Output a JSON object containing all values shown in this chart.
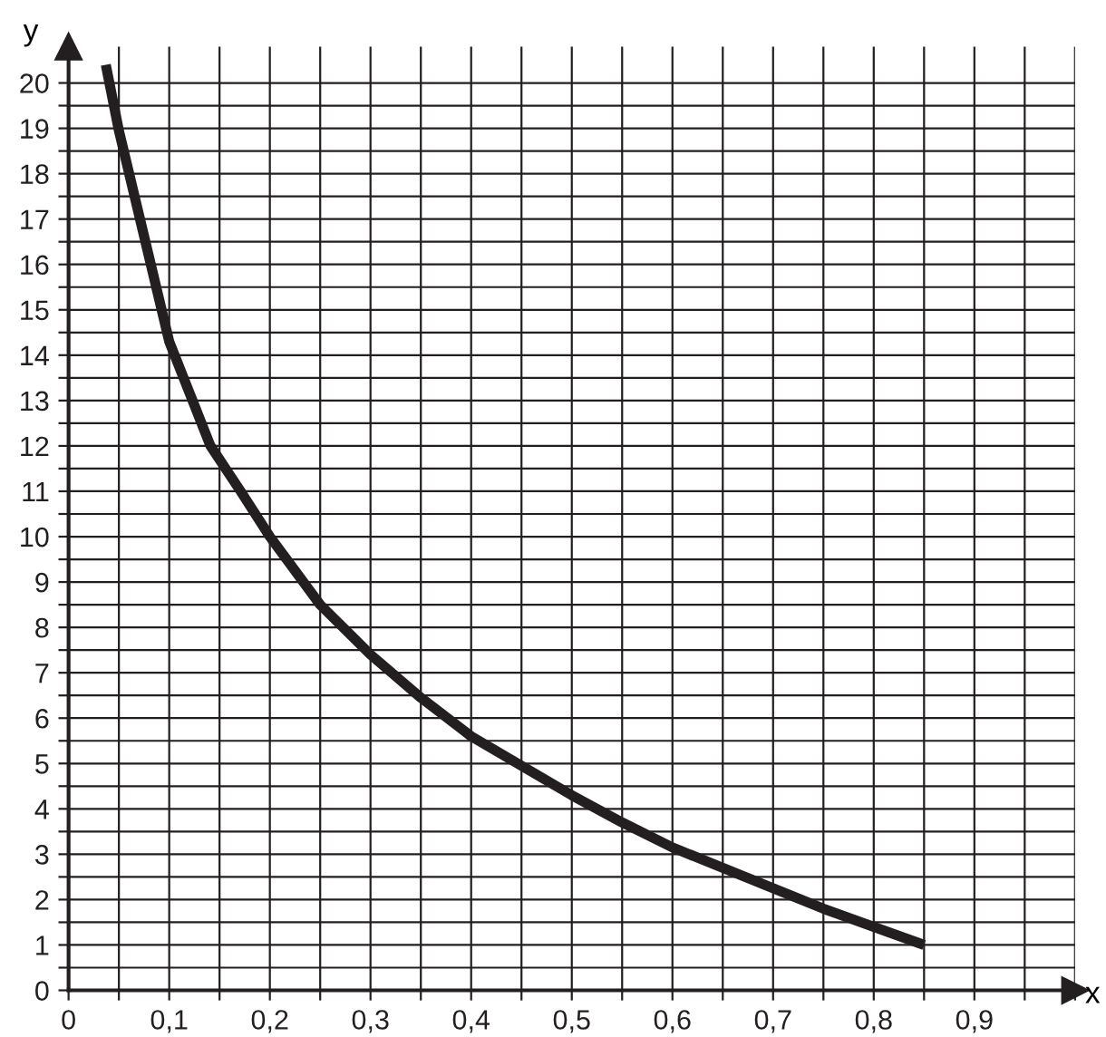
{
  "chart_data": {
    "type": "line",
    "xlabel": "x",
    "ylabel": "y",
    "x": [
      0.037,
      0.05,
      0.1,
      0.141,
      0.15,
      0.171,
      0.2,
      0.25,
      0.3,
      0.35,
      0.4,
      0.45,
      0.5,
      0.55,
      0.6,
      0.65,
      0.7,
      0.75,
      0.8,
      0.85
    ],
    "series": [
      {
        "color": "#231f20",
        "values": [
          20.4,
          18.95,
          14.3,
          12.0,
          11.7,
          11.0,
          10.0,
          8.5,
          7.4,
          6.45,
          5.6,
          4.95,
          4.3,
          3.7,
          3.15,
          2.7,
          2.25,
          1.8,
          1.4,
          1.0
        ]
      }
    ],
    "xlim": [
      0,
      1.0
    ],
    "ylim": [
      0,
      20.8
    ],
    "xticks": [
      0,
      {
        "value": 0.05,
        "label": null
      },
      {
        "value": 0.1,
        "label": "0,1"
      },
      {
        "value": 0.15,
        "label": null
      },
      {
        "value": 0.2,
        "label": "0,2"
      },
      {
        "value": 0.25,
        "label": null
      },
      {
        "value": 0.3,
        "label": "0,3"
      },
      {
        "value": 0.35,
        "label": null
      },
      {
        "value": 0.4,
        "label": "0,4"
      },
      {
        "value": 0.45,
        "label": null
      },
      {
        "value": 0.5,
        "label": "0,5"
      },
      {
        "value": 0.55,
        "label": null
      },
      {
        "value": 0.6,
        "label": "0,6"
      },
      {
        "value": 0.65,
        "label": null
      },
      {
        "value": 0.7,
        "label": "0,7"
      },
      {
        "value": 0.75,
        "label": null
      },
      {
        "value": 0.8,
        "label": "0,8"
      },
      {
        "value": 0.85,
        "label": null
      },
      {
        "value": 0.9,
        "label": "0,9"
      },
      {
        "value": 0.95,
        "label": null
      },
      {
        "value": 1.0,
        "label": null
      }
    ],
    "yticks": [
      0,
      {
        "value": 0.5,
        "label": null
      },
      1,
      {
        "value": 1.5,
        "label": null
      },
      2,
      {
        "value": 2.5,
        "label": null
      },
      3,
      {
        "value": 3.5,
        "label": null
      },
      4,
      {
        "value": 4.5,
        "label": null
      },
      5,
      {
        "value": 5.5,
        "label": null
      },
      6,
      {
        "value": 6.5,
        "label": null
      },
      7,
      {
        "value": 7.5,
        "label": null
      },
      8,
      {
        "value": 8.5,
        "label": null
      },
      9,
      {
        "value": 9.5,
        "label": null
      },
      10,
      {
        "value": 10.5,
        "label": null
      },
      11,
      {
        "value": 11.5,
        "label": null
      },
      12,
      {
        "value": 12.5,
        "label": null
      },
      13,
      {
        "value": 13.5,
        "label": null
      },
      14,
      {
        "value": 14.5,
        "label": null
      },
      15,
      {
        "value": 15.5,
        "label": null
      },
      16,
      {
        "value": 16.5,
        "label": null
      },
      17,
      {
        "value": 17.5,
        "label": null
      },
      18,
      {
        "value": 18.5,
        "label": null
      },
      19,
      {
        "value": 19.5,
        "label": null
      },
      20
    ],
    "grid": true,
    "line_style": "solid"
  }
}
